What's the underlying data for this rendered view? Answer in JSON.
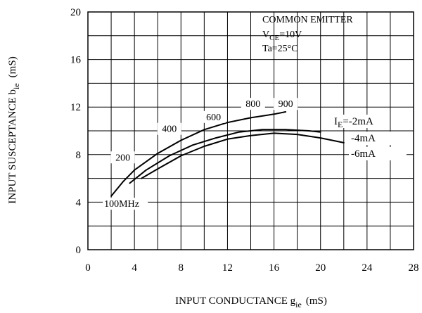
{
  "chart_data": {
    "type": "line",
    "xlabel": {
      "main": "INPUT CONDUCTANCE g",
      "sub": "ie",
      "unit": "(mS)"
    },
    "ylabel": {
      "main": "INPUT SUSCEPTANCE b",
      "sub": "ie",
      "unit": "(mS)"
    },
    "xlim": [
      0,
      28
    ],
    "ylim": [
      0,
      20
    ],
    "x_ticks": [
      0,
      4,
      8,
      12,
      16,
      20,
      24,
      28
    ],
    "y_ticks": [
      0,
      4,
      8,
      12,
      16,
      20
    ],
    "grid": true,
    "conditions": {
      "line1": "COMMON EMITTER",
      "line2_main": "V",
      "line2_sub": "CE",
      "line2_value": "=10V",
      "line3": "Ta=25°C"
    },
    "series": [
      {
        "name": "I_E=-2mA",
        "label_main": "I",
        "label_sub": "E",
        "label_value": "=-2mA",
        "points": [
          [
            2.0,
            4.5
          ],
          [
            3.0,
            5.7
          ],
          [
            4.0,
            6.7
          ],
          [
            6.0,
            8.1
          ],
          [
            8.0,
            9.2
          ],
          [
            10.0,
            10.1
          ],
          [
            12.0,
            10.7
          ],
          [
            14.0,
            11.1
          ],
          [
            16.0,
            11.4
          ],
          [
            17.0,
            11.6
          ]
        ]
      },
      {
        "name": "-4mA",
        "label_main": "",
        "label_sub": "",
        "label_value": "-4mA",
        "points": [
          [
            3.6,
            5.6
          ],
          [
            5.0,
            6.7
          ],
          [
            7.0,
            7.9
          ],
          [
            9.0,
            8.8
          ],
          [
            11.0,
            9.4
          ],
          [
            13.0,
            9.9
          ],
          [
            15.0,
            10.1
          ],
          [
            17.0,
            10.1
          ],
          [
            19.0,
            10.0
          ],
          [
            20.0,
            9.9
          ]
        ]
      },
      {
        "name": "-6mA",
        "label_main": "",
        "label_sub": "",
        "label_value": "-6mA",
        "points": [
          [
            4.6,
            6.0
          ],
          [
            6.0,
            6.8
          ],
          [
            8.0,
            7.9
          ],
          [
            10.0,
            8.7
          ],
          [
            12.0,
            9.3
          ],
          [
            14.0,
            9.6
          ],
          [
            16.0,
            9.8
          ],
          [
            18.0,
            9.7
          ],
          [
            20.0,
            9.4
          ],
          [
            22.0,
            9.0
          ]
        ]
      }
    ],
    "frequency_labels": [
      {
        "text": "100MHz",
        "x": 1.4,
        "y": 3.6
      },
      {
        "text": "200",
        "x": 3.0,
        "y": 7.5
      },
      {
        "text": "400",
        "x": 7.0,
        "y": 9.9
      },
      {
        "text": "600",
        "x": 10.8,
        "y": 10.9
      },
      {
        "text": "800",
        "x": 14.2,
        "y": 12.0
      },
      {
        "text": "900",
        "x": 17.0,
        "y": 12.0
      }
    ]
  }
}
